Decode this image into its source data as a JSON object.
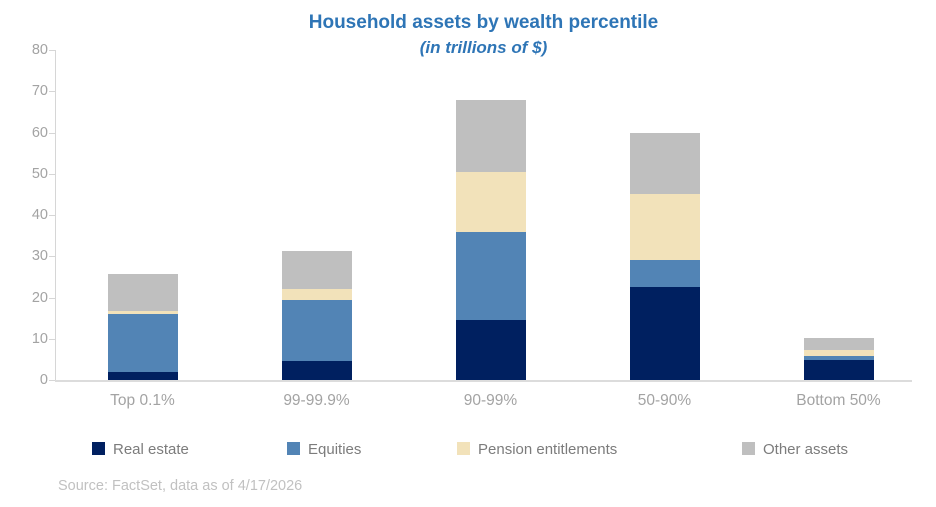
{
  "header": {
    "title": "Household assets by wealth percentile",
    "subtitle": "(in trillions of $)"
  },
  "footer": {
    "source": "Source: FactSet, data as of 4/17/2026"
  },
  "colors": {
    "title_blue": "#2E75B6",
    "real_estate": "#002060",
    "equities": "#5284B5",
    "pension_entitlements": "#F2E2BA",
    "other_assets": "#BFBFBF",
    "axis_line": "#D6D6D6",
    "tick_label": "#A3A3A3",
    "legend_label": "#7C7C7C",
    "source_text": "#C1C1C1"
  },
  "chart_data": {
    "type": "bar",
    "stacked": true,
    "title": "Household assets by wealth percentile",
    "subtitle": "(in trillions of $)",
    "categories": [
      "Top 0.1%",
      "99-99.9%",
      "90-99%",
      "50-90%",
      "Bottom 50%"
    ],
    "series": [
      {
        "name": "Real estate",
        "color": "#002060",
        "values": [
          2.0,
          4.5,
          14.5,
          22.5,
          4.8
        ]
      },
      {
        "name": "Equities",
        "color": "#5284B5",
        "values": [
          14.0,
          15.0,
          21.5,
          6.5,
          1.0
        ]
      },
      {
        "name": "Pension entitlements",
        "color": "#F2E2BA",
        "values": [
          0.7,
          2.5,
          14.5,
          16.0,
          1.5
        ]
      },
      {
        "name": "Other assets",
        "color": "#BFBFBF",
        "values": [
          9.0,
          9.2,
          17.5,
          15.0,
          3.0
        ]
      }
    ],
    "totals": [
      25.7,
      31.2,
      68.0,
      60.0,
      10.3
    ],
    "xlabel": "",
    "ylabel": "",
    "ylim": [
      0,
      80
    ],
    "yticks": [
      0,
      10,
      20,
      30,
      40,
      50,
      60,
      70,
      80
    ],
    "grid": false,
    "legend_position": "bottom"
  }
}
